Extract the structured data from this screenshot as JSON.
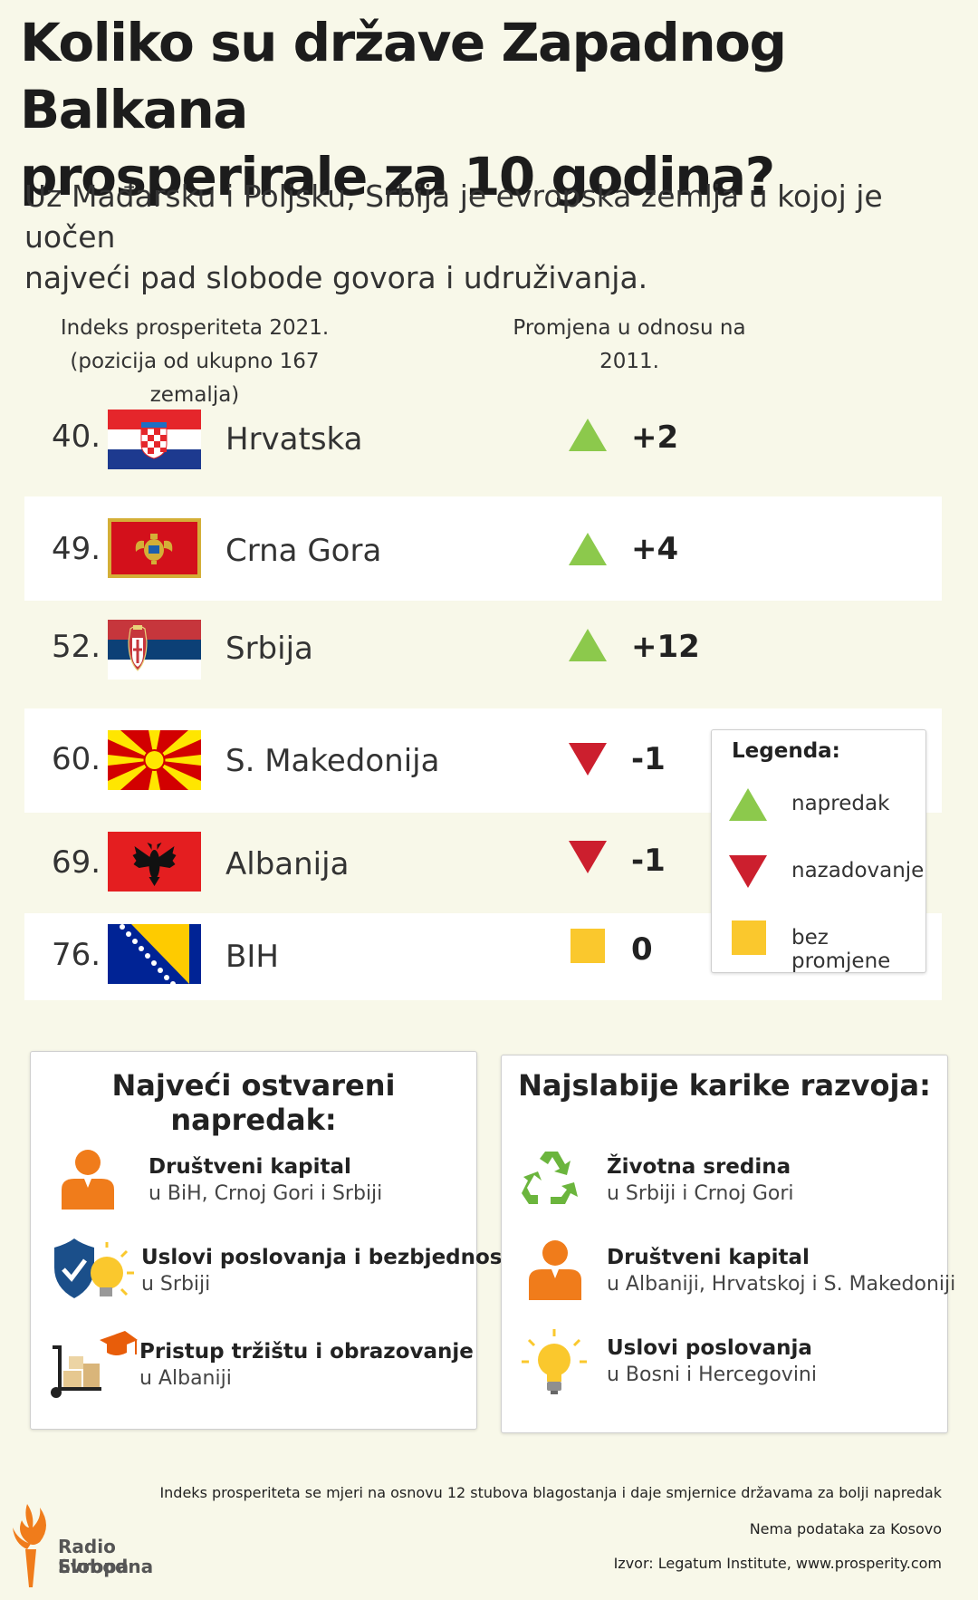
{
  "title_line1": "Koliko su države Zapadnog Balkana",
  "title_line2": "prosperirale za 10 godina?",
  "subtitle_line1": "Uz Mađarsku i Poljsku, Srbija je evropska zemlja u kojoj je uočen",
  "subtitle_line2": "najveći pad slobode govora i udruživanja.",
  "col_head_left_line1": "Indeks prosperiteta 2021.",
  "col_head_left_line2": "(pozicija od ukupno 167 zemalja)",
  "col_head_right": "Promjena u odnosu na 2011.",
  "countries": [
    {
      "rank": "40.",
      "name": "Hrvatska",
      "trend": "up",
      "change": "+2"
    },
    {
      "rank": "49.",
      "name": "Crna Gora",
      "trend": "up",
      "change": "+4"
    },
    {
      "rank": "52.",
      "name": "Srbija",
      "trend": "up",
      "change": "+12"
    },
    {
      "rank": "60.",
      "name": "S. Makedonija",
      "trend": "down",
      "change": "-1"
    },
    {
      "rank": "69.",
      "name": "Albanija",
      "trend": "down",
      "change": "-1"
    },
    {
      "rank": "76.",
      "name": "BIH",
      "trend": "same",
      "change": "0"
    }
  ],
  "legend": {
    "title": "Legenda:",
    "up": "napredak",
    "down": "nazadovanje",
    "same": "bez promjene"
  },
  "colors": {
    "up": "#8cc94c",
    "down": "#cc1f2e",
    "same": "#fac82d",
    "icon_orange": "#f07c1b"
  },
  "panel_left": {
    "title": "Najveći ostvareni napredak:",
    "items": [
      {
        "icon": "person-icon",
        "line1": "Društveni kapital",
        "line2": "u BiH, Crnoj Gori i Srbiji"
      },
      {
        "icon": "shield-bulb-icon",
        "line1": "Uslovi poslovanja i bezbjednost",
        "line2": "u Srbiji"
      },
      {
        "icon": "cart-graduation-icon",
        "line1": "Pristup tržištu i obrazovanje",
        "line2": "u Albaniji"
      }
    ]
  },
  "panel_right": {
    "title": "Najslabije karike razvoja:",
    "items": [
      {
        "icon": "recycle-icon",
        "line1": "Životna sredina",
        "line2": "u Srbiji i Crnoj Gori"
      },
      {
        "icon": "person-icon",
        "line1": "Društveni kapital",
        "line2": "u Albaniji, Hrvatskoj i S. Makedoniji"
      },
      {
        "icon": "lightbulb-icon",
        "line1": "Uslovi poslovanja",
        "line2": "u Bosni i Hercegovini"
      }
    ]
  },
  "footer": {
    "note1": "Indeks prosperiteta se mjeri na osnovu 12 stubova blagostanja i daje smjernice državama za bolji napredak",
    "note2": "Nema podataka za Kosovo",
    "source": "Izvor: Legatum Institute, www.prosperity.com"
  },
  "logo": {
    "line1": "Radio Slobodna",
    "line2": "Evropa"
  }
}
